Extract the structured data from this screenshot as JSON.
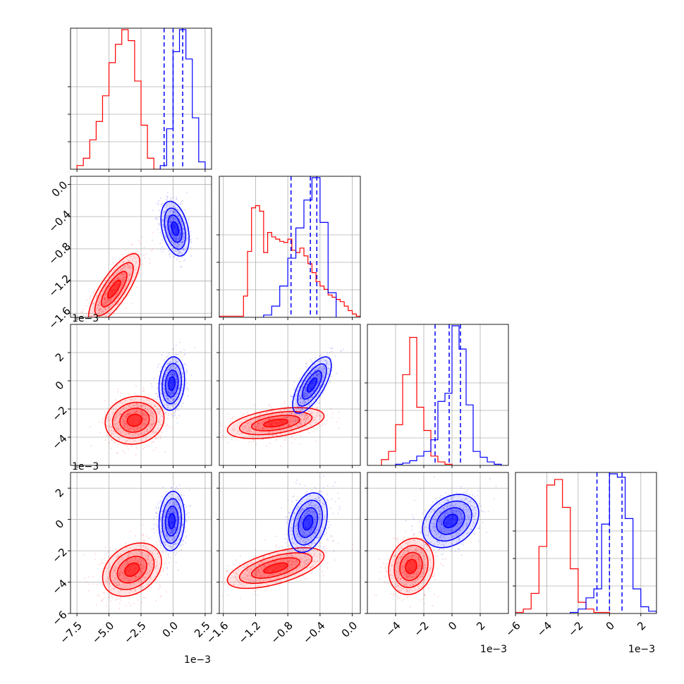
{
  "chart_data": {
    "type": "corner",
    "colors": {
      "primary": "#ff0000",
      "secondary": "#0000ff"
    },
    "grid": true,
    "quantile_lines": "dashed, blue series, 3 per 1-D histogram",
    "parameters": [
      {
        "id": "p0",
        "range": [
          -8.0,
          3.0
        ],
        "ticks": [
          "−7.5",
          "−5.0",
          "−2.5",
          "0.0",
          "2.5"
        ],
        "tick_values": [
          -7.5,
          -5.0,
          -2.5,
          0.0,
          2.5
        ],
        "offset_label": "1e−3"
      },
      {
        "id": "p1",
        "range": [
          -1.65,
          0.1
        ],
        "ticks": [
          "−1.6",
          "−1.2",
          "−0.8",
          "−0.4",
          "0.0"
        ],
        "tick_values": [
          -1.6,
          -1.2,
          -0.8,
          -0.4,
          0.0
        ],
        "offset_label": "1e−3"
      },
      {
        "id": "p2",
        "range": [
          -6.0,
          4.0
        ],
        "ticks": [
          "−4",
          "−2",
          "0",
          "2"
        ],
        "tick_values": [
          -4,
          -2,
          0,
          2
        ],
        "offset_label": "1e−3"
      },
      {
        "id": "p3",
        "range": [
          -6.0,
          3.0
        ],
        "ticks": [
          "−6",
          "−4",
          "−2",
          "0",
          "2"
        ],
        "tick_values": [
          -6,
          -4,
          -2,
          0,
          2
        ],
        "offset_label": "1e−3"
      }
    ],
    "histograms": [
      {
        "param": 0,
        "red": {
          "edges": [
            -7.5,
            -7.0,
            -6.5,
            -6.0,
            -5.5,
            -5.0,
            -4.5,
            -4.0,
            -3.5,
            -3.0,
            -2.5,
            -2.0,
            -1.5,
            -1.0
          ],
          "counts": [
            1,
            3,
            8,
            13,
            20,
            29,
            34,
            38,
            35,
            24,
            12,
            3,
            0
          ]
        },
        "blue": {
          "edges": [
            -1.0,
            -0.5,
            0.0,
            0.5,
            1.0,
            1.5,
            2.0,
            2.5
          ],
          "counts": [
            1,
            11,
            32,
            38,
            30,
            14,
            2
          ]
        },
        "quantiles": [
          -0.7,
          0.0,
          0.75
        ]
      },
      {
        "param": 1,
        "red": {
          "edges": [
            -1.65,
            -1.6,
            -1.55,
            -1.5,
            -1.45,
            -1.4,
            -1.35,
            -1.3,
            -1.25,
            -1.2,
            -1.15,
            -1.1,
            -1.05,
            -1.0,
            -0.95,
            -0.9,
            -0.85,
            -0.8,
            -0.75,
            -0.7,
            -0.65,
            -0.6,
            -0.55,
            -0.5,
            -0.45,
            -0.4,
            -0.35,
            -0.3,
            -0.25,
            -0.2,
            -0.15,
            -0.1,
            -0.05,
            0.0,
            0.05,
            0.1
          ],
          "counts": [
            1,
            1,
            1,
            1,
            1,
            1,
            19,
            59,
            98,
            100,
            95,
            58,
            76,
            72,
            70,
            68,
            67,
            70,
            60,
            58,
            62,
            55,
            48,
            40,
            32,
            28,
            25,
            20,
            18,
            16,
            14,
            10,
            6,
            3,
            1
          ]
        },
        "blue": {
          "edges": [
            -1.1,
            -1.0,
            -0.9,
            -0.8,
            -0.7,
            -0.6,
            -0.5,
            -0.4,
            -0.3,
            -0.2
          ],
          "counts": [
            2,
            10,
            28,
            53,
            80,
            105,
            125,
            85,
            22
          ]
        },
        "quantiles": [
          -0.76,
          -0.52,
          -0.44
        ]
      },
      {
        "param": 2,
        "red": {
          "edges": [
            -5.0,
            -4.5,
            -4.0,
            -3.5,
            -3.0,
            -2.5,
            -2.0,
            -1.5,
            -1.0,
            -0.5,
            0.0
          ],
          "counts": [
            5,
            12,
            35,
            78,
            110,
            50,
            30,
            8,
            3,
            1
          ]
        },
        "blue": {
          "edges": [
            -4.0,
            -3.5,
            -3.0,
            -2.5,
            -2.0,
            -1.5,
            -1.0,
            -0.5,
            0.0,
            0.5,
            1.0,
            1.5,
            2.0,
            2.5,
            3.0,
            3.5
          ],
          "counts": [
            1,
            2,
            4,
            8,
            12,
            22,
            55,
            62,
            120,
            100,
            52,
            12,
            7,
            3,
            1
          ]
        },
        "quantiles": [
          -1.2,
          -0.2,
          0.6
        ]
      },
      {
        "param": 3,
        "red": {
          "edges": [
            -6.0,
            -5.5,
            -5.0,
            -4.5,
            -4.0,
            -3.5,
            -3.0,
            -2.5,
            -2.0,
            -1.5,
            -1.0,
            -0.5,
            0.0
          ],
          "counts": [
            1,
            4,
            18,
            60,
            115,
            120,
            95,
            40,
            10,
            4,
            1,
            1
          ]
        },
        "blue": {
          "edges": [
            -2.5,
            -2.0,
            -1.5,
            -1.0,
            -0.5,
            0.0,
            0.5,
            1.0,
            1.5,
            2.0,
            2.5,
            3.0
          ],
          "counts": [
            1,
            4,
            14,
            22,
            80,
            125,
            122,
            85,
            22,
            6,
            2
          ]
        },
        "quantiles": [
          -0.8,
          0.0,
          0.8
        ]
      }
    ],
    "pairs": [
      {
        "x_param": 0,
        "y_param": 1,
        "red": {
          "cx": -4.6,
          "cy": -1.3,
          "sx": 1.0,
          "sy": 0.22,
          "rho": 0.78
        },
        "blue": {
          "cx": 0.15,
          "cy": -0.55,
          "sx": 0.55,
          "sy": 0.17,
          "rho": -0.35
        }
      },
      {
        "x_param": 0,
        "y_param": 2,
        "red": {
          "cx": -3.0,
          "cy": -2.8,
          "sx": 1.15,
          "sy": 0.85,
          "rho": 0.1
        },
        "blue": {
          "cx": -0.1,
          "cy": -0.2,
          "sx": 0.5,
          "sy": 0.95,
          "rho": 0.15
        }
      },
      {
        "x_param": 1,
        "y_param": 2,
        "red": {
          "cx": -0.95,
          "cy": -3.0,
          "sx": 0.3,
          "sy": 0.55,
          "rho": 0.45
        },
        "blue": {
          "cx": -0.5,
          "cy": -0.3,
          "sx": 0.12,
          "sy": 1.0,
          "rho": 0.7
        }
      },
      {
        "x_param": 0,
        "y_param": 3,
        "red": {
          "cx": -3.2,
          "cy": -3.2,
          "sx": 1.15,
          "sy": 0.85,
          "rho": 0.3
        },
        "blue": {
          "cx": -0.1,
          "cy": -0.1,
          "sx": 0.5,
          "sy": 0.95,
          "rho": 0.1
        }
      },
      {
        "x_param": 1,
        "y_param": 3,
        "red": {
          "cx": -0.95,
          "cy": -3.1,
          "sx": 0.3,
          "sy": 0.65,
          "rho": 0.6
        },
        "blue": {
          "cx": -0.55,
          "cy": -0.2,
          "sx": 0.12,
          "sy": 0.95,
          "rho": 0.3
        }
      },
      {
        "x_param": 2,
        "y_param": 3,
        "red": {
          "cx": -2.9,
          "cy": -3.0,
          "sx": 0.8,
          "sy": 0.9,
          "rho": 0.15
        },
        "blue": {
          "cx": -0.1,
          "cy": -0.1,
          "sx": 1.0,
          "sy": 0.85,
          "rho": 0.3
        }
      }
    ]
  }
}
